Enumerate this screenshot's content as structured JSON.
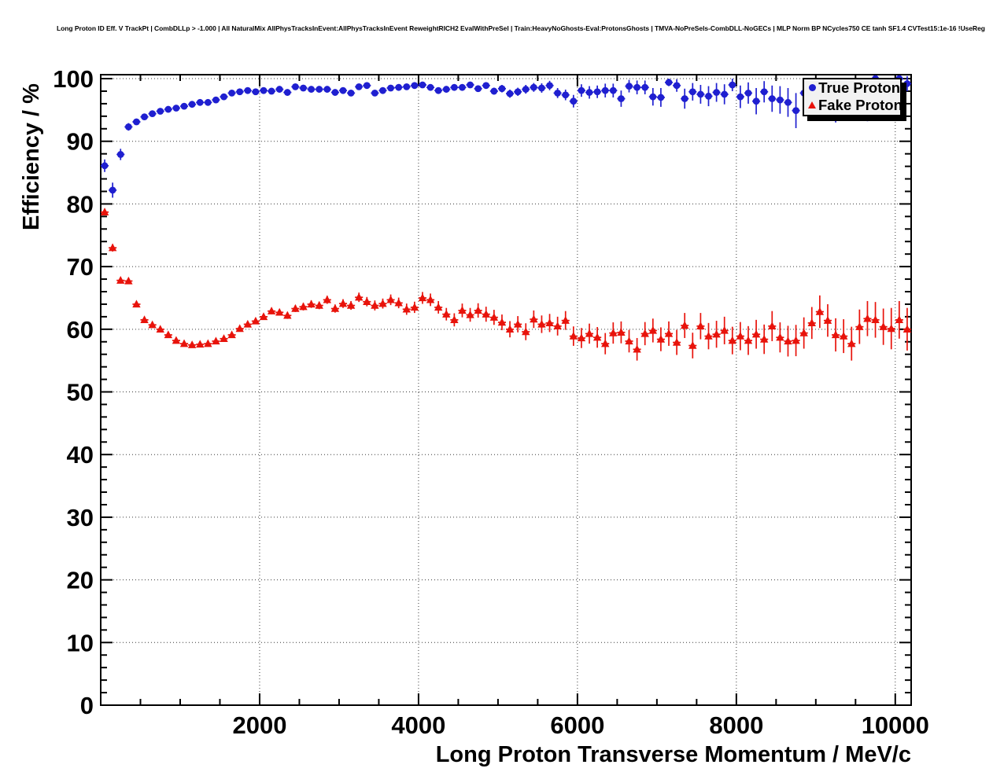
{
  "header": {
    "title": "Long Proton ID Eff. V TrackPt | CombDLLp > -1.000 | All NaturalMix AllPhysTracksInEvent:AllPhysTracksInEvent ReweightRICH2 EvalWithPreSel | Train:HeavyNoGhosts-Eval:ProtonsGhosts | TMVA-NoPreSels-CombDLL-NoGECs | MLP Norm BP NCycles750 CE tanh SF1.4 CVTest15:1e-16 !UseReg"
  },
  "chart_data": {
    "type": "scatter",
    "title": "Long Proton ID Eff. V TrackPt | CombDLLp > -1.000 | All NaturalMix AllPhysTracksInEvent:AllPhysTracksInEvent ReweightRICH2 EvalWithPreSel | Train:HeavyNoGhosts-Eval:ProtonsGhosts | TMVA-NoPreSels-CombDLL-NoGECs | MLP Norm BP NCycles750 CE tanh SF1.4 CVTest15:1e-16 !UseReg",
    "xlabel": "Long Proton Transverse Momentum / MeV/c",
    "ylabel": "Efficiency / %",
    "xlim": [
      0,
      10200
    ],
    "ylim": [
      0,
      100.63
    ],
    "xticks": [
      2000,
      4000,
      6000,
      8000,
      10000
    ],
    "xtick_labels": [
      "2000",
      "4000",
      "6000",
      "8000",
      "10000"
    ],
    "x_minor_step": 500,
    "yticks": [
      0,
      10,
      20,
      30,
      40,
      50,
      60,
      70,
      80,
      90,
      100
    ],
    "ytick_labels": [
      "0",
      "10",
      "20",
      "30",
      "40",
      "50",
      "60",
      "70",
      "80",
      "90",
      "100"
    ],
    "y_minor_step": 2,
    "grid": "dotted lines at major ticks, both axes",
    "legend": {
      "position": "top-right",
      "background": "#f2f2f2",
      "shadow": true
    },
    "x_bin_half_width": 50,
    "x": [
      50,
      150,
      250,
      350,
      450,
      550,
      650,
      750,
      850,
      950,
      1050,
      1150,
      1250,
      1350,
      1450,
      1550,
      1650,
      1750,
      1850,
      1950,
      2050,
      2150,
      2250,
      2350,
      2450,
      2550,
      2650,
      2750,
      2850,
      2950,
      3050,
      3150,
      3250,
      3350,
      3450,
      3550,
      3650,
      3750,
      3850,
      3950,
      4050,
      4150,
      4250,
      4350,
      4450,
      4550,
      4650,
      4750,
      4850,
      4950,
      5050,
      5150,
      5250,
      5350,
      5450,
      5550,
      5650,
      5750,
      5850,
      5950,
      6050,
      6150,
      6250,
      6350,
      6450,
      6550,
      6650,
      6750,
      6850,
      6950,
      7050,
      7150,
      7250,
      7350,
      7450,
      7550,
      7650,
      7750,
      7850,
      7950,
      8050,
      8150,
      8250,
      8350,
      8450,
      8550,
      8650,
      8750,
      8850,
      8950,
      9050,
      9150,
      9250,
      9350,
      9450,
      9550,
      9650,
      9750,
      9850,
      9950,
      10050,
      10150
    ],
    "series": [
      {
        "name": "True Proton",
        "marker": "circle",
        "color": "#1f1fd0",
        "y": [
          86.1,
          82.2,
          87.9,
          92.3,
          93.1,
          93.9,
          94.4,
          94.8,
          95.1,
          95.3,
          95.6,
          95.9,
          96.2,
          96.2,
          96.6,
          97.1,
          97.7,
          97.9,
          98.1,
          97.9,
          98.1,
          98.0,
          98.3,
          97.8,
          98.7,
          98.5,
          98.3,
          98.3,
          98.3,
          97.8,
          98.1,
          97.7,
          98.7,
          98.9,
          97.7,
          98.1,
          98.5,
          98.6,
          98.7,
          98.9,
          99.0,
          98.6,
          98.1,
          98.3,
          98.6,
          98.6,
          99.0,
          98.4,
          98.9,
          98.0,
          98.4,
          97.6,
          97.9,
          98.3,
          98.6,
          98.5,
          98.9,
          97.7,
          97.4,
          96.4,
          98.1,
          97.8,
          97.9,
          98.1,
          98.1,
          96.8,
          98.8,
          98.6,
          98.6,
          97.1,
          97.0,
          99.4,
          98.9,
          96.8,
          97.9,
          97.5,
          97.2,
          97.8,
          97.5,
          99.0,
          97.1,
          97.7,
          96.4,
          97.9,
          96.8,
          96.6,
          96.2,
          94.9,
          97.7,
          96.8,
          96.2,
          97.4,
          95.9,
          96.9,
          96.3,
          97.2,
          96.1,
          100.0,
          97.5,
          96.8,
          100.0,
          99.2
        ],
        "yerr": [
          1.0,
          1.2,
          0.9,
          0.6,
          0.5,
          0.5,
          0.4,
          0.4,
          0.4,
          0.4,
          0.4,
          0.4,
          0.4,
          0.4,
          0.4,
          0.4,
          0.35,
          0.35,
          0.35,
          0.35,
          0.35,
          0.35,
          0.35,
          0.35,
          0.35,
          0.35,
          0.35,
          0.35,
          0.35,
          0.35,
          0.35,
          0.35,
          0.35,
          0.35,
          0.35,
          0.35,
          0.35,
          0.35,
          0.35,
          0.35,
          0.4,
          0.4,
          0.4,
          0.4,
          0.4,
          0.45,
          0.45,
          0.5,
          0.5,
          0.55,
          0.6,
          0.65,
          0.65,
          0.7,
          0.7,
          0.75,
          0.75,
          0.8,
          0.85,
          1.0,
          1.0,
          1.0,
          1.0,
          1.1,
          1.1,
          1.3,
          1.0,
          1.1,
          1.1,
          1.4,
          1.5,
          0.6,
          1.0,
          1.6,
          1.4,
          1.5,
          1.6,
          1.5,
          1.6,
          1.0,
          1.8,
          1.7,
          2.1,
          1.7,
          2.1,
          2.2,
          2.3,
          2.8,
          1.8,
          2.3,
          2.6,
          2.2,
          2.9,
          2.4,
          2.7,
          2.3,
          2.9,
          0.4,
          2.4,
          2.7,
          0.4,
          1.2
        ]
      },
      {
        "name": "Fake Proton",
        "marker": "triangle",
        "color": "#e8130b",
        "y": [
          78.7,
          73.0,
          67.8,
          67.7,
          64.0,
          61.5,
          60.7,
          60.0,
          59.1,
          58.2,
          57.7,
          57.5,
          57.6,
          57.7,
          58.1,
          58.5,
          59.1,
          60.1,
          60.8,
          61.3,
          62.0,
          62.9,
          62.7,
          62.2,
          63.3,
          63.6,
          64.0,
          63.8,
          64.7,
          63.3,
          64.1,
          63.8,
          65.1,
          64.4,
          63.8,
          64.1,
          64.7,
          64.2,
          63.2,
          63.5,
          65.0,
          64.7,
          63.5,
          62.4,
          61.5,
          63.0,
          62.3,
          63.0,
          62.4,
          61.9,
          61.1,
          60.0,
          60.8,
          59.6,
          61.6,
          60.8,
          61.0,
          60.5,
          61.4,
          58.9,
          58.6,
          59.3,
          58.7,
          57.7,
          59.4,
          59.5,
          58.1,
          56.8,
          59.3,
          59.8,
          58.4,
          59.3,
          57.9,
          60.6,
          57.4,
          60.5,
          58.9,
          59.2,
          59.8,
          58.2,
          58.9,
          58.2,
          59.2,
          58.4,
          60.5,
          58.7,
          58.1,
          58.2,
          59.4,
          61.0,
          62.8,
          61.4,
          59.1,
          58.9,
          57.7,
          60.4,
          61.7,
          61.5,
          60.4,
          60.1,
          61.5,
          60.0
        ],
        "yerr": [
          0.5,
          0.6,
          0.5,
          0.5,
          0.4,
          0.35,
          0.3,
          0.3,
          0.3,
          0.3,
          0.3,
          0.3,
          0.3,
          0.3,
          0.3,
          0.3,
          0.3,
          0.35,
          0.35,
          0.4,
          0.45,
          0.5,
          0.5,
          0.55,
          0.55,
          0.6,
          0.6,
          0.6,
          0.65,
          0.65,
          0.7,
          0.7,
          0.75,
          0.75,
          0.8,
          0.8,
          0.85,
          0.85,
          0.9,
          0.9,
          0.95,
          1.0,
          1.0,
          1.0,
          1.05,
          1.1,
          1.1,
          1.15,
          1.2,
          1.2,
          1.25,
          1.3,
          1.3,
          1.35,
          1.4,
          1.4,
          1.45,
          1.5,
          1.5,
          1.55,
          1.6,
          1.6,
          1.65,
          1.7,
          1.7,
          1.75,
          1.8,
          1.8,
          1.85,
          1.9,
          1.9,
          1.95,
          2.0,
          2.0,
          2.05,
          2.1,
          2.1,
          2.15,
          2.2,
          2.2,
          2.25,
          2.3,
          2.3,
          2.35,
          2.4,
          2.4,
          2.45,
          2.5,
          2.5,
          2.55,
          2.6,
          2.6,
          2.65,
          2.7,
          2.7,
          2.75,
          2.8,
          2.85,
          2.9,
          3.3,
          3.0,
          3.4
        ]
      }
    ]
  }
}
